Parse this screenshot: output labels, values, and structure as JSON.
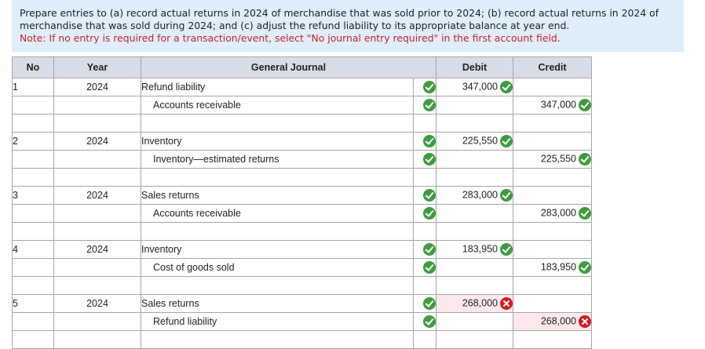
{
  "instructions": {
    "text": "Prepare entries to (a) record actual returns in 2024 of merchandise that was sold prior to 2024; (b) record actual returns in 2024 of merchandise that was sold during 2024; and (c) adjust the refund liability to its appropriate balance at year end.",
    "note": "Note: If no entry is required for a transaction/event, select \"No journal entry required\" in the first account field."
  },
  "table": {
    "headers": {
      "no": "No",
      "year": "Year",
      "journal": "General Journal",
      "debit": "Debit",
      "credit": "Credit"
    },
    "entries": [
      {
        "no": "1",
        "year": "2024",
        "lines": [
          {
            "account": "Refund liability",
            "debit": "347,000",
            "credit": "",
            "debit_status": "correct",
            "credit_status": ""
          },
          {
            "account": "Accounts receivable",
            "debit": "",
            "credit": "347,000",
            "debit_status": "",
            "credit_status": "correct"
          }
        ]
      },
      {
        "no": "2",
        "year": "2024",
        "lines": [
          {
            "account": "Inventory",
            "debit": "225,550",
            "credit": "",
            "debit_status": "correct",
            "credit_status": ""
          },
          {
            "account": "Inventory—estimated returns",
            "debit": "",
            "credit": "225,550",
            "debit_status": "",
            "credit_status": "correct"
          }
        ]
      },
      {
        "no": "3",
        "year": "2024",
        "lines": [
          {
            "account": "Sales returns",
            "debit": "283,000",
            "credit": "",
            "debit_status": "correct",
            "credit_status": ""
          },
          {
            "account": "Accounts receivable",
            "debit": "",
            "credit": "283,000",
            "debit_status": "",
            "credit_status": "correct"
          }
        ]
      },
      {
        "no": "4",
        "year": "2024",
        "lines": [
          {
            "account": "Inventory",
            "debit": "183,950",
            "credit": "",
            "debit_status": "correct",
            "credit_status": ""
          },
          {
            "account": "Cost of goods sold",
            "debit": "",
            "credit": "183,950",
            "debit_status": "",
            "credit_status": "correct"
          }
        ]
      },
      {
        "no": "5",
        "year": "2024",
        "lines": [
          {
            "account": "Sales returns",
            "debit": "268,000",
            "credit": "",
            "debit_status": "incorrect",
            "credit_status": ""
          },
          {
            "account": "Refund liability",
            "debit": "",
            "credit": "268,000",
            "debit_status": "",
            "credit_status": "incorrect"
          }
        ]
      }
    ]
  },
  "colors": {
    "correct": "#3f9b3f",
    "incorrect": "#cf1d22",
    "header_bg": "#d7dde6",
    "instructions_bg": "#dfeefa",
    "note_text": "#c8202a"
  }
}
